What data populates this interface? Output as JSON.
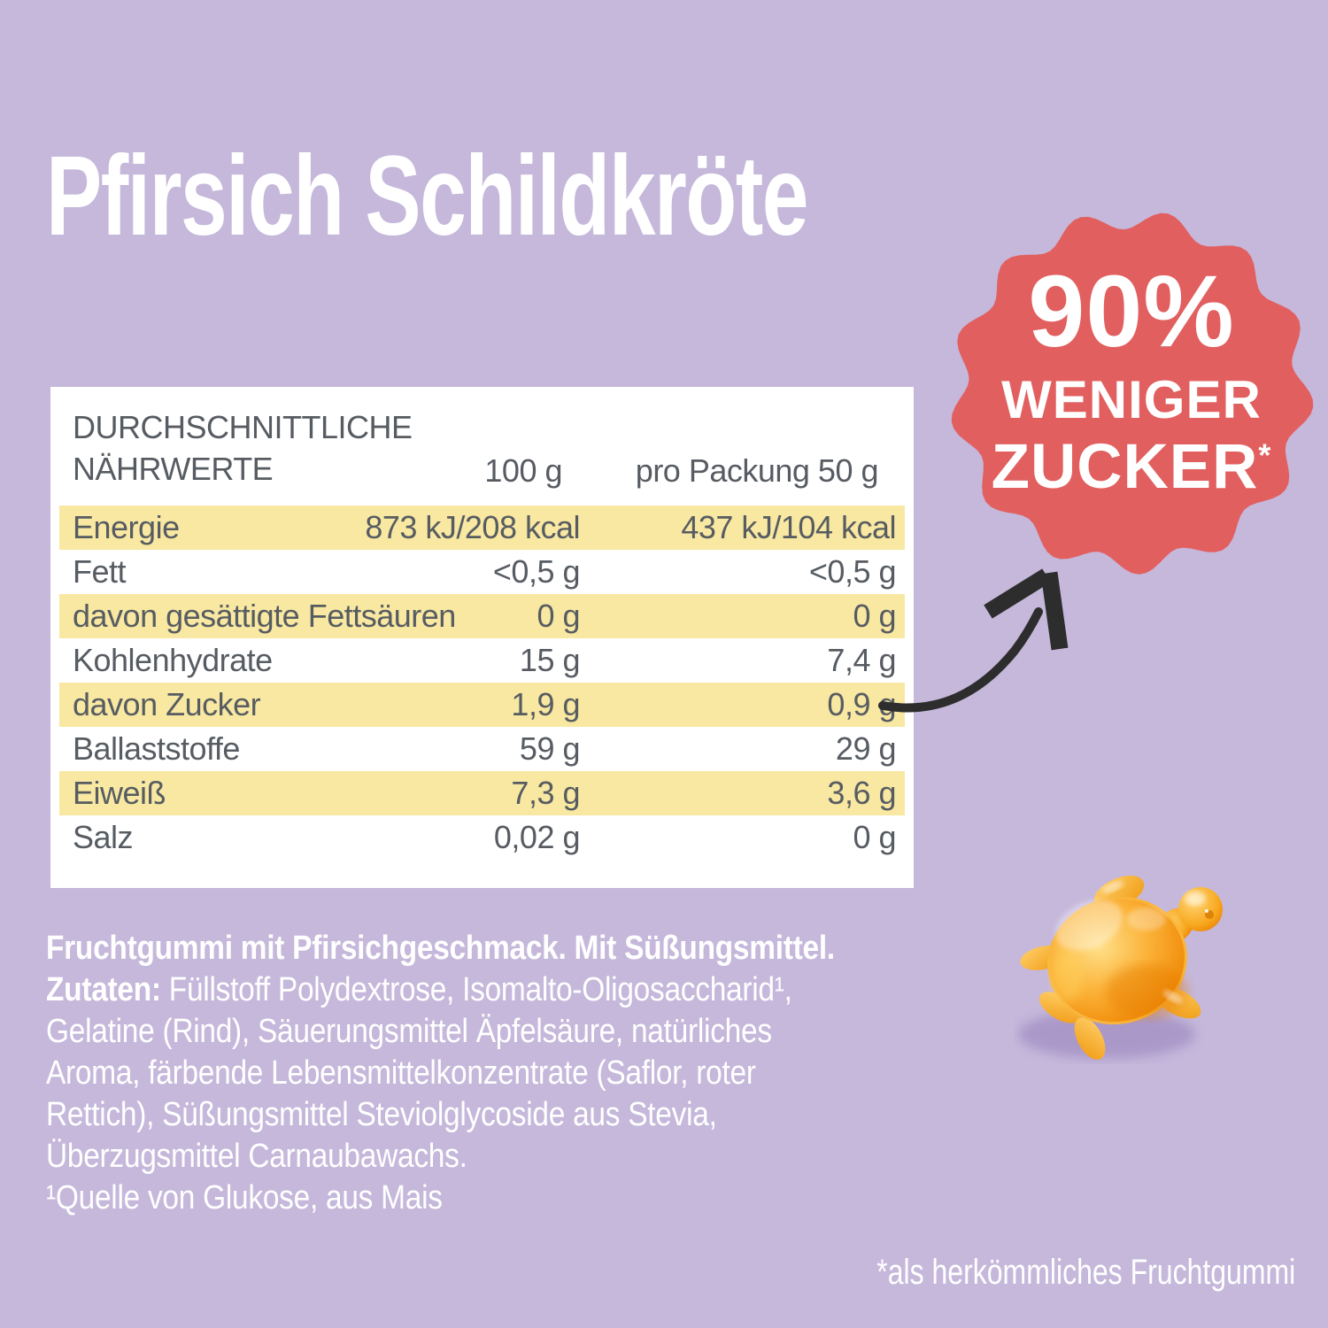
{
  "title": "Pfirsich Schildkröte",
  "badge": {
    "percent": "90%",
    "line2": "WENIGER",
    "line3": "ZUCKER",
    "asterisk": "*"
  },
  "nutrition": {
    "header_label": "DURCHSCHNITTLICHE NÄHRWERTE",
    "col_100g": "100 g",
    "col_pack": "pro Packung 50 g",
    "rows": [
      {
        "label": "Energie",
        "per_100g": "873 kJ/208 kcal",
        "per_pack": "437 kJ/104 kcal",
        "highlighted": true
      },
      {
        "label": "Fett",
        "per_100g": "<0,5 g",
        "per_pack": "<0,5 g",
        "highlighted": false
      },
      {
        "label": "davon gesättigte Fettsäuren",
        "per_100g": "0 g",
        "per_pack": "0 g",
        "highlighted": true
      },
      {
        "label": "Kohlenhydrate",
        "per_100g": "15 g",
        "per_pack": "7,4 g",
        "highlighted": false
      },
      {
        "label": "davon Zucker",
        "per_100g": "1,9 g",
        "per_pack": "0,9 g",
        "highlighted": true
      },
      {
        "label": "Ballaststoffe",
        "per_100g": "59 g",
        "per_pack": "29 g",
        "highlighted": false
      },
      {
        "label": "Eiweiß",
        "per_100g": "7,3 g",
        "per_pack": "3,6 g",
        "highlighted": true
      },
      {
        "label": "Salz",
        "per_100g": "0,02 g",
        "per_pack": "0 g",
        "highlighted": false
      }
    ]
  },
  "ingredients": {
    "line1": "Fruchtgummi mit Pfirsichgeschmack. Mit Süßungsmittel.",
    "zutaten_label": "Zutaten:",
    "line2_rest": " Füllstoff Polydextrose, Isomalto-Oligosaccharid¹,",
    "line3": "Gelatine (Rind), Säuerungsmittel Äpfelsäure, natürliches",
    "line4": "Aroma, färbende Lebensmittelkonzentrate (Saflor, roter",
    "line5": "Rettich), Süßungsmittel Steviolglycoside aus Stevia,",
    "line6": "Überzugsmittel Carnaubawachs.",
    "line7": "¹Quelle von Glukose, aus Mais"
  },
  "footnote": "*als herkömmliches Fruchtgummi",
  "colors": {
    "background": "#c5b8db",
    "badge": "#e25f5f",
    "row_highlight": "#f8e8a1",
    "table_text": "#575c62",
    "arrow": "#2d2d2d",
    "turtle_orange": "#f9a41f"
  }
}
